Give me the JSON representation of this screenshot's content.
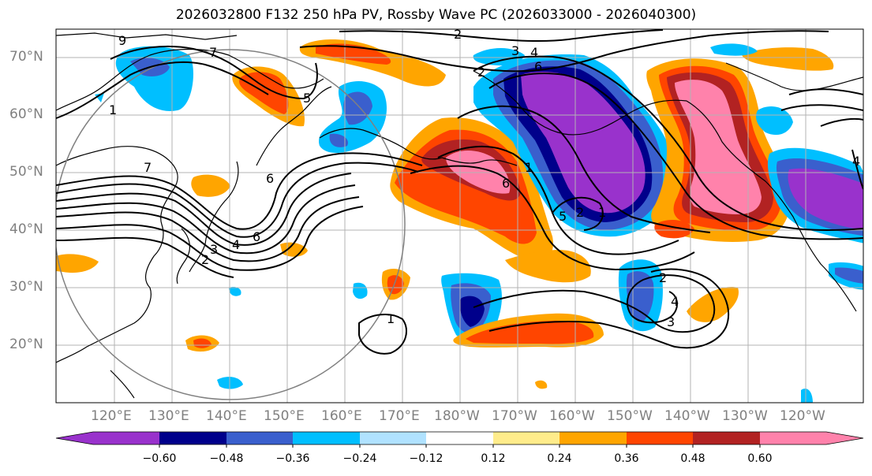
{
  "title": "2026032800 F132 250 hPa PV, Rossby Wave PC (2026033000 - 2026040300)",
  "lat_labels": [
    "70°N",
    "60°N",
    "50°N",
    "40°N",
    "30°N",
    "20°N"
  ],
  "lon_labels": [
    "120°E",
    "130°E",
    "140°E",
    "150°E",
    "160°E",
    "170°E",
    "180°W",
    "170°W",
    "160°W",
    "150°W",
    "140°W",
    "130°W",
    "120°W"
  ],
  "colorbar": {
    "colors": [
      "#9932CC",
      "#00008B",
      "#3A5FCD",
      "#00BFFF",
      "#B0E2FF",
      "#FFFFFF",
      "#FFEC8B",
      "#FFA500",
      "#FF4500",
      "#B22222",
      "#FF82AB"
    ],
    "tick_labels": [
      "−0.60",
      "−0.48",
      "−0.36",
      "−0.24",
      "−0.12",
      "0.12",
      "0.24",
      "0.36",
      "0.48",
      "0.60"
    ]
  },
  "contour_labels": [
    "2",
    "3",
    "4",
    "6",
    "9",
    "7",
    "5",
    "1",
    "6",
    "2",
    "3",
    "4",
    "6",
    "1",
    "6",
    "5",
    "2",
    "1",
    "2",
    "3",
    "4",
    "2",
    "7",
    "1",
    "4"
  ]
}
